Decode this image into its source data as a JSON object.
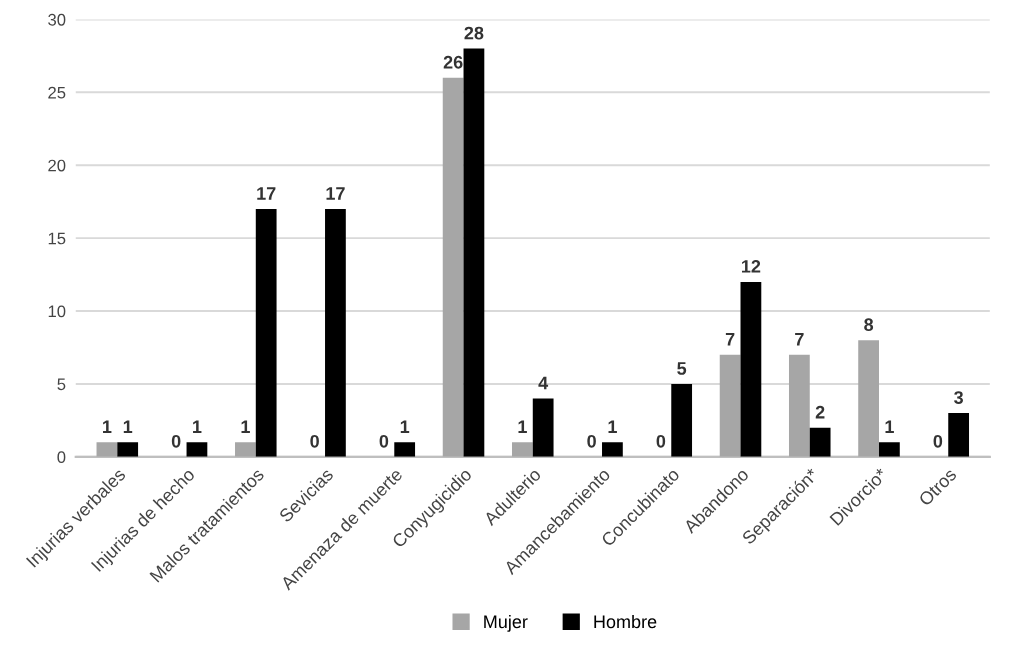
{
  "chart_data": {
    "type": "bar",
    "categories": [
      "Injurias verbales",
      "Injurias de hecho",
      "Malos tratamientos",
      "Sevicias",
      "Amenaza de muerte",
      "Conyugicidio",
      "Adulterio",
      "Amancebamiento",
      "Concubinato",
      "Abandono",
      "Separación*",
      "Divorcio*",
      "Otros"
    ],
    "series": [
      {
        "name": "Mujer",
        "color": "#a6a6a6",
        "values": [
          1,
          0,
          1,
          0,
          0,
          26,
          1,
          0,
          0,
          7,
          7,
          8,
          0
        ]
      },
      {
        "name": "Hombre",
        "color": "#000000",
        "values": [
          1,
          1,
          17,
          17,
          1,
          28,
          4,
          1,
          5,
          12,
          2,
          1,
          3
        ]
      }
    ],
    "ylim": [
      0,
      30
    ],
    "yticks": [
      0,
      5,
      10,
      15,
      20,
      25,
      30
    ],
    "grid": "y",
    "legend": "bottom",
    "data_labels": true
  }
}
